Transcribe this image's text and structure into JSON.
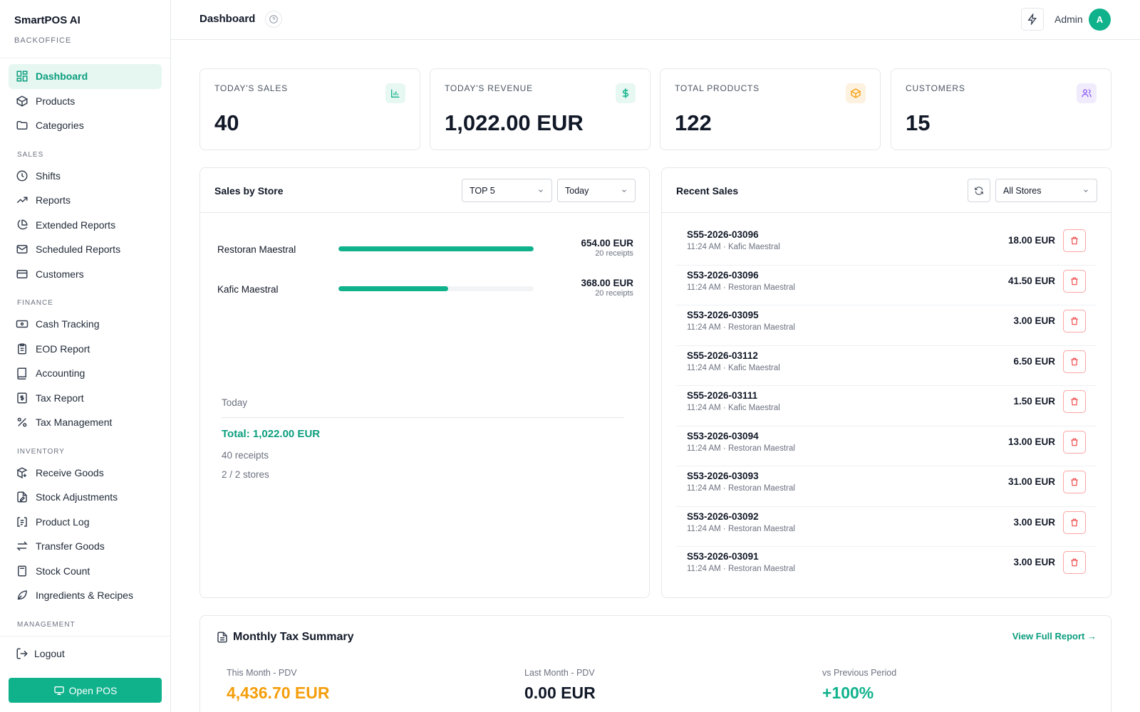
{
  "brand": {
    "name": "SmartPOS AI",
    "sub": "BACKOFFICE"
  },
  "sidebar": {
    "items": [
      {
        "label": "Dashboard",
        "icon": "dashboard-icon"
      },
      {
        "label": "Products",
        "icon": "box-icon"
      },
      {
        "label": "Categories",
        "icon": "folder-icon"
      }
    ],
    "sales_section": "SALES",
    "sales_items": [
      {
        "label": "Shifts",
        "icon": "clock-icon"
      },
      {
        "label": "Reports",
        "icon": "trend-icon"
      },
      {
        "label": "Extended Reports",
        "icon": "pie-icon"
      },
      {
        "label": "Scheduled Reports",
        "icon": "mail-icon"
      },
      {
        "label": "Customers",
        "icon": "card-icon"
      }
    ],
    "finance_section": "FINANCE",
    "finance_items": [
      {
        "label": "Cash Tracking",
        "icon": "cash-icon"
      },
      {
        "label": "EOD Report",
        "icon": "clipboard-icon"
      },
      {
        "label": "Accounting",
        "icon": "book-icon"
      },
      {
        "label": "Tax Report",
        "icon": "dollar-file-icon"
      },
      {
        "label": "Tax Management",
        "icon": "percent-icon"
      }
    ],
    "inventory_section": "INVENTORY",
    "inventory_items": [
      {
        "label": "Receive Goods",
        "icon": "package-plus-icon"
      },
      {
        "label": "Stock Adjustments",
        "icon": "file-edit-icon"
      },
      {
        "label": "Product Log",
        "icon": "log-icon"
      },
      {
        "label": "Transfer Goods",
        "icon": "transfer-icon"
      },
      {
        "label": "Stock Count",
        "icon": "calculator-icon"
      },
      {
        "label": "Ingredients & Recipes",
        "icon": "leaf-icon"
      }
    ],
    "management_section": "MANAGEMENT",
    "logout": "Logout",
    "open_pos": "Open POS"
  },
  "header": {
    "title": "Dashboard",
    "user": "Admin",
    "avatar_letter": "A"
  },
  "stats": [
    {
      "label": "TODAY'S SALES",
      "value": "40",
      "icon": "bar-chart-icon",
      "color": "#10b28c",
      "bg": "#e7f7f1"
    },
    {
      "label": "TODAY'S REVENUE",
      "value": "1,022.00 EUR",
      "icon": "dollar-icon",
      "color": "#10b28c",
      "bg": "#e7f7f1"
    },
    {
      "label": "TOTAL PRODUCTS",
      "value": "122",
      "icon": "cube-icon",
      "color": "#f59e0b",
      "bg": "#fdf1df"
    },
    {
      "label": "CUSTOMERS",
      "value": "15",
      "icon": "users-icon",
      "color": "#8b5cf6",
      "bg": "#f1ecfd"
    }
  ],
  "sales_by_store": {
    "title": "Sales by Store",
    "top_filter": "TOP 5",
    "period_filter": "Today",
    "stores": [
      {
        "name": "Restoran Maestral",
        "amount": "654.00 EUR",
        "receipts": "20 receipts",
        "share": 1.0
      },
      {
        "name": "Kafic Maestral",
        "amount": "368.00 EUR",
        "receipts": "20 receipts",
        "share": 0.5627
      }
    ],
    "summary": {
      "period": "Today",
      "total": "Total: 1,022.00 EUR",
      "receipts": "40 receipts",
      "stores": "2 / 2 stores"
    }
  },
  "recent_sales": {
    "title": "Recent Sales",
    "store_filter": "All Stores",
    "rows": [
      {
        "id": "S55-2026-03096",
        "meta": "11:24 AM · Kafic Maestral",
        "amount": "18.00 EUR"
      },
      {
        "id": "S53-2026-03096",
        "meta": "11:24 AM · Restoran Maestral",
        "amount": "41.50 EUR"
      },
      {
        "id": "S53-2026-03095",
        "meta": "11:24 AM · Restoran Maestral",
        "amount": "3.00 EUR"
      },
      {
        "id": "S55-2026-03112",
        "meta": "11:24 AM · Kafic Maestral",
        "amount": "6.50 EUR"
      },
      {
        "id": "S55-2026-03111",
        "meta": "11:24 AM · Kafic Maestral",
        "amount": "1.50 EUR"
      },
      {
        "id": "S53-2026-03094",
        "meta": "11:24 AM · Restoran Maestral",
        "amount": "13.00 EUR"
      },
      {
        "id": "S53-2026-03093",
        "meta": "11:24 AM · Restoran Maestral",
        "amount": "31.00 EUR"
      },
      {
        "id": "S53-2026-03092",
        "meta": "11:24 AM · Restoran Maestral",
        "amount": "3.00 EUR"
      },
      {
        "id": "S53-2026-03091",
        "meta": "11:24 AM · Restoran Maestral",
        "amount": "3.00 EUR"
      }
    ]
  },
  "tax_summary": {
    "title": "Monthly Tax Summary",
    "link": "View Full Report →",
    "this_month_label": "This Month - PDV",
    "this_month_value": "4,436.70 EUR",
    "last_month_label": "Last Month - PDV",
    "last_month_value": "0.00 EUR",
    "vs_label": "vs Previous Period",
    "vs_value": "+100%",
    "colors": {
      "this_month": "#f59e0b",
      "last_month": "#111827",
      "vs": "#10b28c"
    }
  }
}
